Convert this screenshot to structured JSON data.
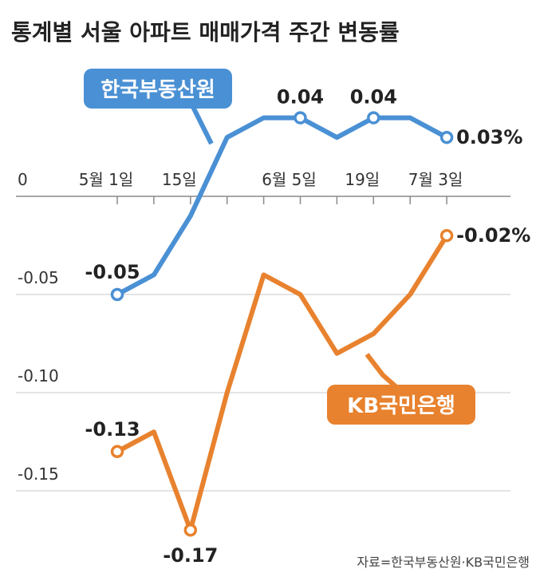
{
  "chart_data": {
    "type": "line",
    "title": "통계별 서울 아파트 매매가격 주간 변동률",
    "x_tick_labels": [
      "5월 1일",
      "15일",
      "6월 5일",
      "19일",
      "7월 3일"
    ],
    "y_tick_labels": [
      "0",
      "-0.05",
      "-0.10",
      "-0.15"
    ],
    "ylim": [
      -0.18,
      0.05
    ],
    "grid": true,
    "series": [
      {
        "name": "한국부동산원",
        "color": "#4a90d4",
        "x": [
          "2023-05-01",
          "2023-05-08",
          "2023-05-15",
          "2023-05-22",
          "2023-05-29",
          "2023-06-05",
          "2023-06-12",
          "2023-06-19",
          "2023-06-26",
          "2023-07-03"
        ],
        "values": [
          -0.05,
          -0.04,
          -0.01,
          0.03,
          0.04,
          0.04,
          0.03,
          0.04,
          0.04,
          0.03
        ],
        "labels": [
          {
            "index": 0,
            "text": "-0.05",
            "pos": "above-left"
          },
          {
            "index": 5,
            "text": "0.04",
            "pos": "above"
          },
          {
            "index": 7,
            "text": "0.04",
            "pos": "above"
          },
          {
            "index": 9,
            "text": "0.03",
            "pos": "right",
            "unit": "%"
          }
        ]
      },
      {
        "name": "KB국민은행",
        "color": "#e8822e",
        "x": [
          "2023-05-01",
          "2023-05-08",
          "2023-05-15",
          "2023-05-22",
          "2023-05-29",
          "2023-06-05",
          "2023-06-12",
          "2023-06-19",
          "2023-06-26",
          "2023-07-03"
        ],
        "values": [
          -0.13,
          -0.12,
          -0.17,
          -0.1,
          -0.04,
          -0.05,
          -0.08,
          -0.07,
          -0.05,
          -0.02
        ],
        "labels": [
          {
            "index": 0,
            "text": "-0.13",
            "pos": "above-left"
          },
          {
            "index": 2,
            "text": "-0.17",
            "pos": "below"
          },
          {
            "index": 9,
            "text": "-0.02",
            "pos": "right",
            "unit": "%"
          }
        ]
      }
    ],
    "legend": [
      {
        "text": "한국부동산원",
        "color": "#4a90d4",
        "placement": "top-left"
      },
      {
        "text": "KB국민은행",
        "color": "#e8822e",
        "placement": "bottom-right"
      }
    ],
    "source": "자료=한국부동산원·KB국민은행"
  }
}
